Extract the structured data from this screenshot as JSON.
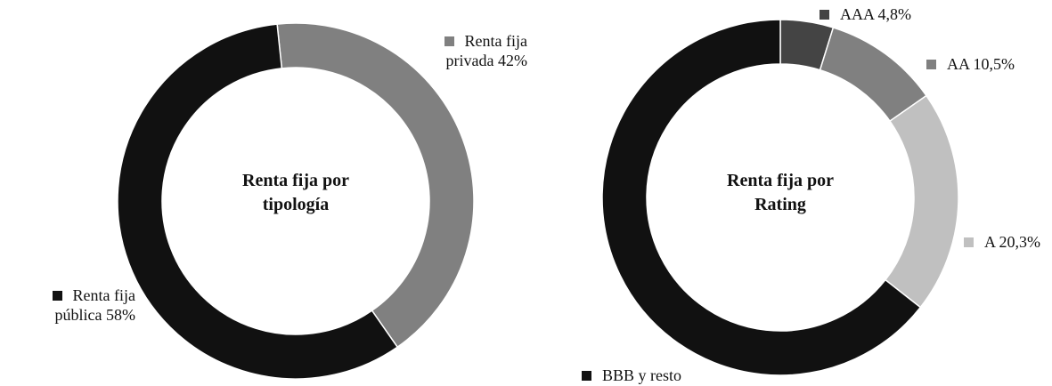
{
  "chart_data": [
    {
      "type": "donut",
      "title": "Renta fija por tipología",
      "categories": [
        "Renta fija privada",
        "Renta fija pública"
      ],
      "values": [
        42,
        58
      ],
      "value_labels": [
        "42%",
        "58%"
      ],
      "colors": [
        "#808080",
        "#111111"
      ]
    },
    {
      "type": "donut",
      "title": "Renta fija por Rating",
      "categories": [
        "AAA",
        "AA",
        "A",
        "BBB y resto"
      ],
      "values": [
        4.8,
        10.5,
        20.3,
        64.4
      ],
      "value_labels": [
        "4,8%",
        "10,5%",
        "20,3%",
        null
      ],
      "colors": [
        "#444444",
        "#808080",
        "#c0c0c0",
        "#111111"
      ]
    }
  ]
}
